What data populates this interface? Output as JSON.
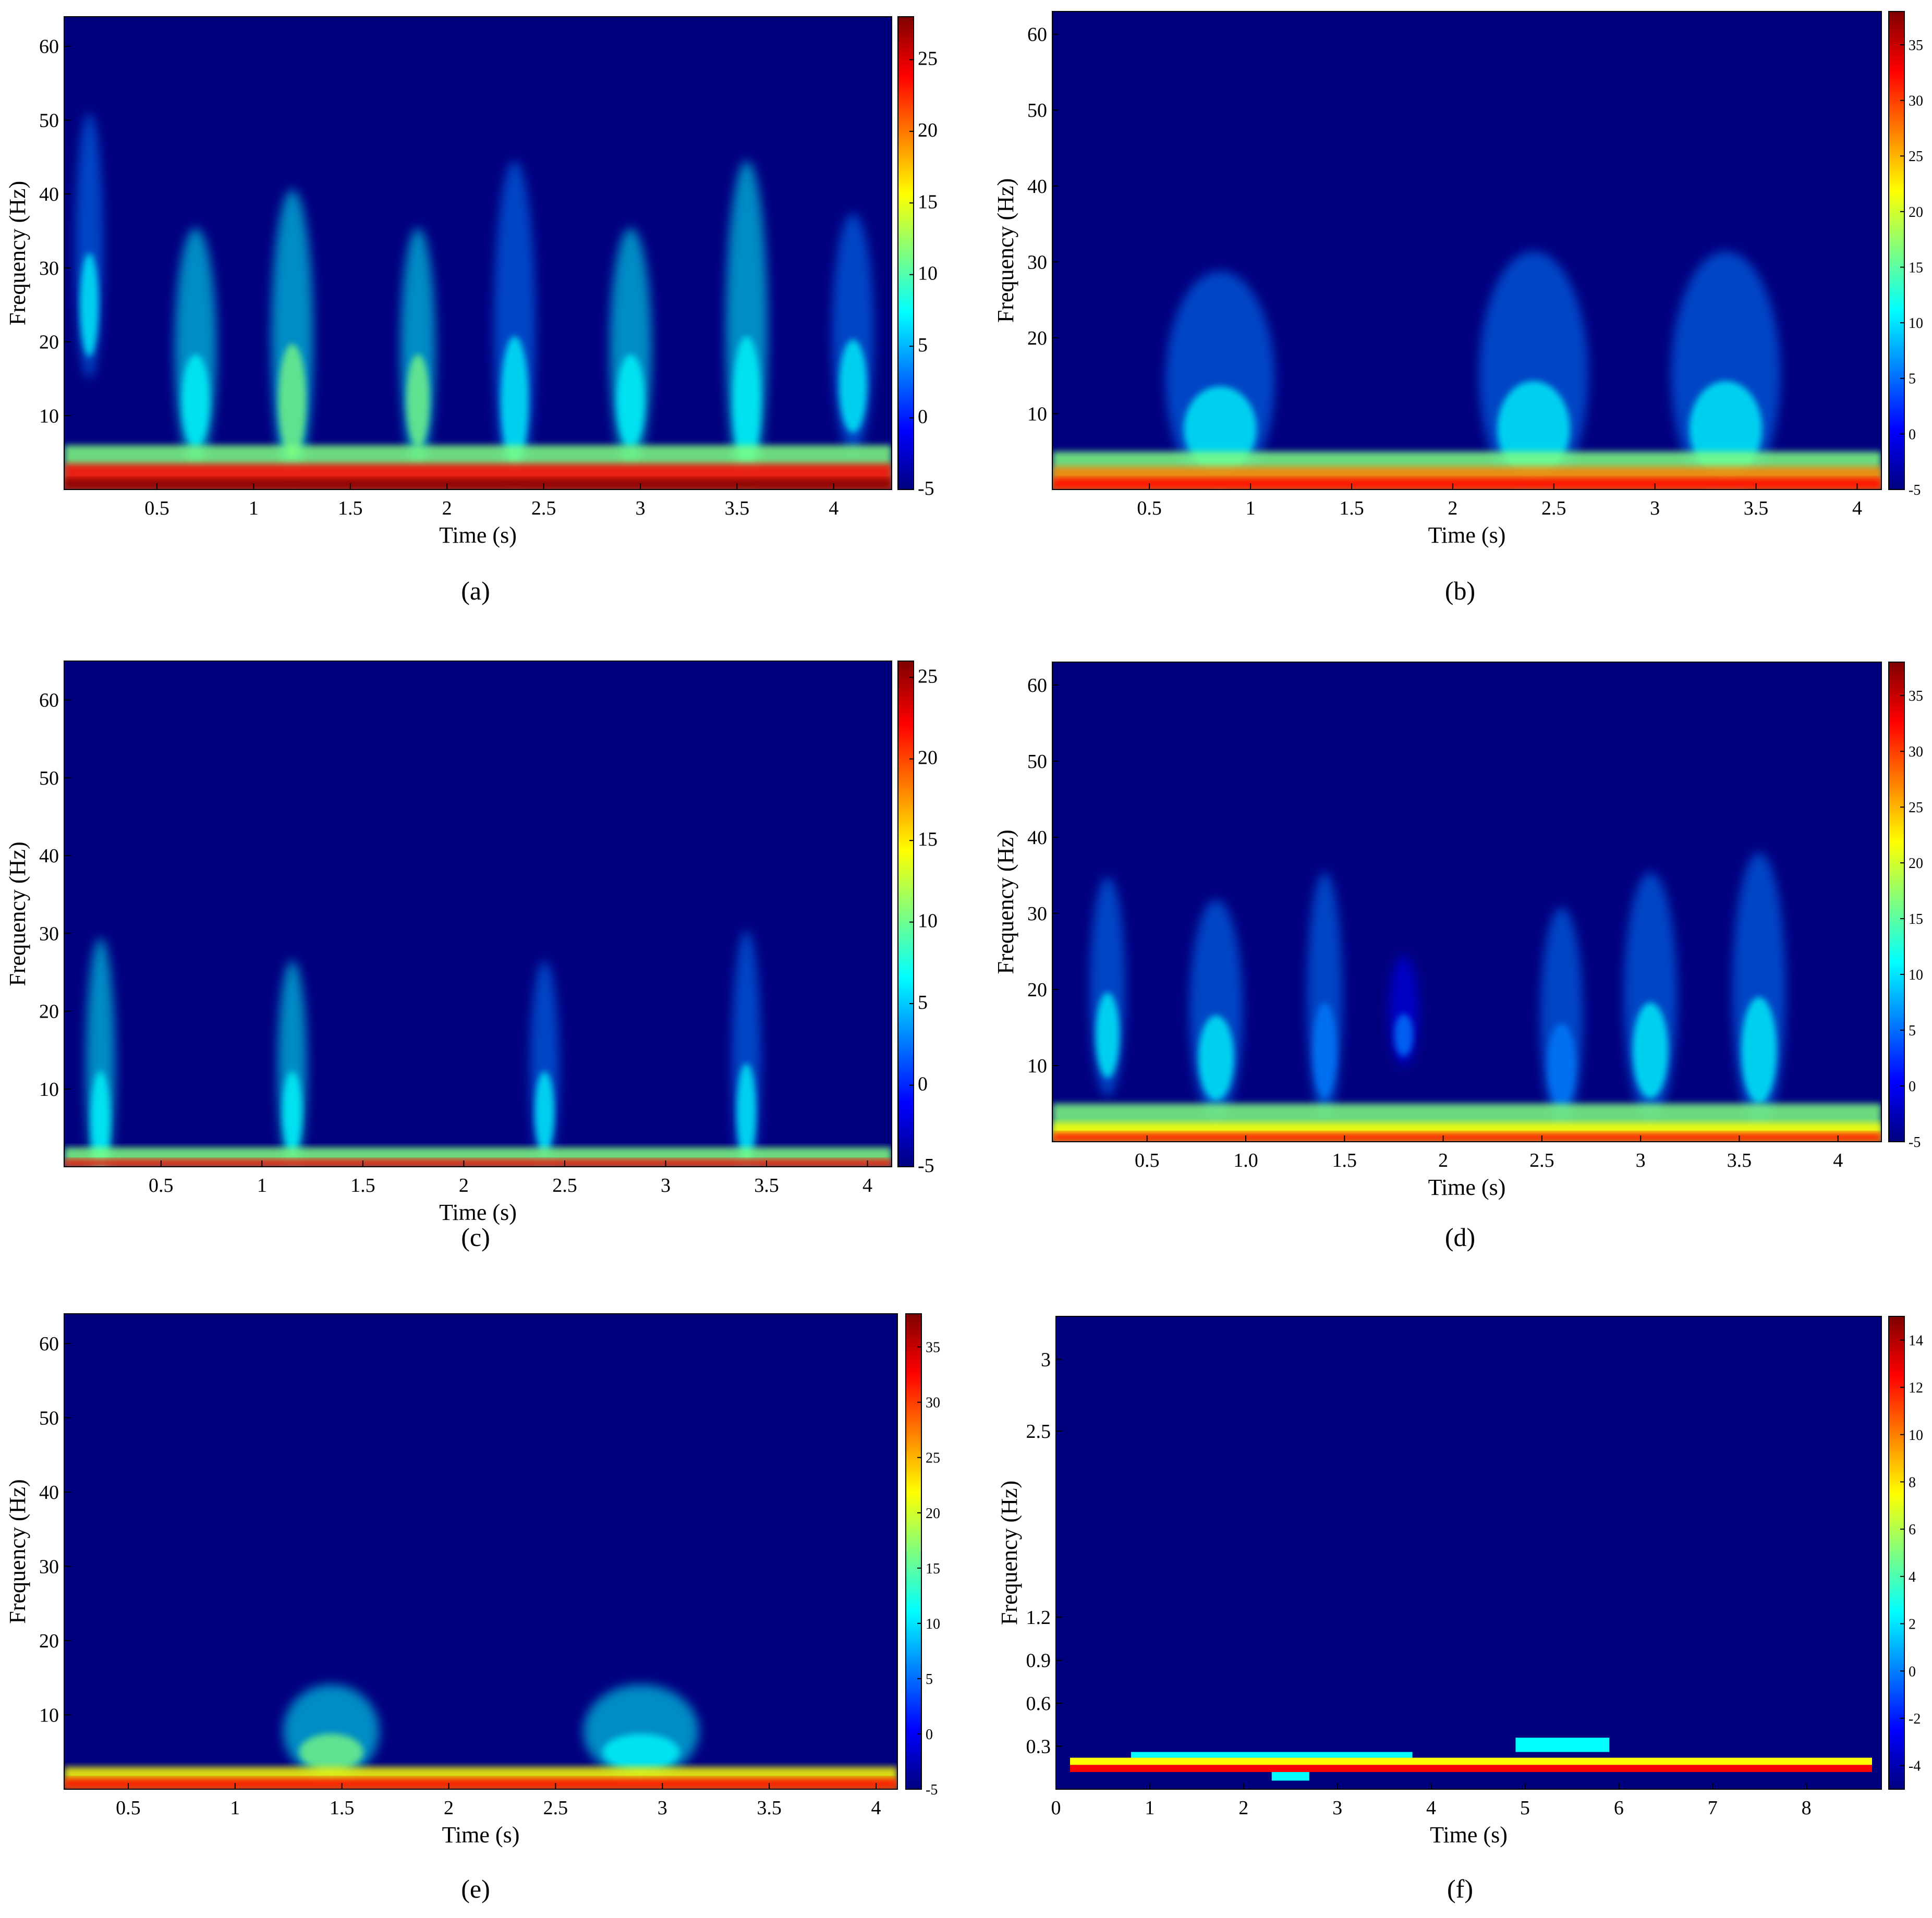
{
  "figure": {
    "panels_note": ""
  },
  "colormap": [
    "#00007f",
    "#0000ff",
    "#007fff",
    "#00ffff",
    "#7fff7f",
    "#ffff00",
    "#ff7f00",
    "#ff0000",
    "#7f0000"
  ],
  "chart_data": [
    {
      "id": "a",
      "type": "heatmap",
      "caption": "(a)",
      "xlabel": "Time (s)",
      "ylabel": "Frequency (Hz)",
      "xlim": [
        0.02,
        4.3
      ],
      "ylim": [
        0,
        64
      ],
      "xticks": [
        {
          "v": 0.5,
          "t": "0.5"
        },
        {
          "v": 1,
          "t": "1"
        },
        {
          "v": 1.5,
          "t": "1.5"
        },
        {
          "v": 2,
          "t": "2"
        },
        {
          "v": 2.5,
          "t": "2.5"
        },
        {
          "v": 3,
          "t": "3"
        },
        {
          "v": 3.5,
          "t": "3.5"
        },
        {
          "v": 4,
          "t": "4"
        }
      ],
      "yticks": [
        {
          "v": 10,
          "t": "10"
        },
        {
          "v": 20,
          "t": "20"
        },
        {
          "v": 30,
          "t": "30"
        },
        {
          "v": 40,
          "t": "40"
        },
        {
          "v": 50,
          "t": "50"
        },
        {
          "v": 60,
          "t": "60"
        }
      ],
      "clim": [
        -5,
        28
      ],
      "cticks": [
        {
          "v": -5,
          "t": "-5"
        },
        {
          "v": 0,
          "t": "0"
        },
        {
          "v": 5,
          "t": "5"
        },
        {
          "v": 10,
          "t": "10"
        },
        {
          "v": 15,
          "t": "15"
        },
        {
          "v": 20,
          "t": "20"
        },
        {
          "v": 25,
          "t": "25"
        }
      ],
      "base_band": [
        {
          "f": 1.5,
          "level": 26
        },
        {
          "f": 3.5,
          "level": 22
        },
        {
          "f": 6,
          "level": 12
        }
      ],
      "bursts": [
        {
          "t": 0.15,
          "f": 25,
          "spread": 0.08,
          "height": 20,
          "level": 6
        },
        {
          "t": 0.7,
          "f": 12,
          "spread": 0.12,
          "height": 18,
          "level": 9
        },
        {
          "t": 1.2,
          "f": 12,
          "spread": 0.12,
          "height": 22,
          "level": 11
        },
        {
          "t": 1.85,
          "f": 12,
          "spread": 0.1,
          "height": 18,
          "level": 10
        },
        {
          "t": 2.35,
          "f": 12,
          "spread": 0.12,
          "height": 25,
          "level": 8
        },
        {
          "t": 2.95,
          "f": 12,
          "spread": 0.12,
          "height": 18,
          "level": 9
        },
        {
          "t": 3.55,
          "f": 12,
          "spread": 0.12,
          "height": 25,
          "level": 9
        },
        {
          "t": 4.1,
          "f": 14,
          "spread": 0.12,
          "height": 18,
          "level": 8
        }
      ]
    },
    {
      "id": "b",
      "type": "heatmap",
      "caption": "(b)",
      "xlabel": "Time (s)",
      "ylabel": "Frequency (Hz)",
      "xlim": [
        0.02,
        4.12
      ],
      "ylim": [
        0,
        63
      ],
      "xticks": [
        {
          "v": 0.5,
          "t": "0.5"
        },
        {
          "v": 1,
          "t": "1"
        },
        {
          "v": 1.5,
          "t": "1.5"
        },
        {
          "v": 2,
          "t": "2"
        },
        {
          "v": 2.5,
          "t": "2.5"
        },
        {
          "v": 3,
          "t": "3"
        },
        {
          "v": 3.5,
          "t": "3.5"
        },
        {
          "v": 4,
          "t": "4"
        }
      ],
      "yticks": [
        {
          "v": 10,
          "t": "10"
        },
        {
          "v": 20,
          "t": "20"
        },
        {
          "v": 30,
          "t": "30"
        },
        {
          "v": 40,
          "t": "40"
        },
        {
          "v": 50,
          "t": "50"
        },
        {
          "v": 60,
          "t": "60"
        }
      ],
      "clim": [
        -5,
        38
      ],
      "cticks": [
        {
          "v": -5,
          "t": "-5"
        },
        {
          "v": 0,
          "t": "0"
        },
        {
          "v": 5,
          "t": "5"
        },
        {
          "v": 10,
          "t": "10"
        },
        {
          "v": 15,
          "t": "15"
        },
        {
          "v": 20,
          "t": "20"
        },
        {
          "v": 25,
          "t": "25"
        },
        {
          "v": 30,
          "t": "30"
        },
        {
          "v": 35,
          "t": "35"
        }
      ],
      "base_band": [
        {
          "f": 1.5,
          "level": 34
        },
        {
          "f": 3,
          "level": 26
        },
        {
          "f": 5,
          "level": 14
        }
      ],
      "bursts": [
        {
          "t": 0.85,
          "f": 8,
          "spread": 0.3,
          "height": 16,
          "level": 10
        },
        {
          "t": 2.4,
          "f": 8,
          "spread": 0.3,
          "height": 18,
          "level": 10
        },
        {
          "t": 3.35,
          "f": 8,
          "spread": 0.3,
          "height": 18,
          "level": 9
        }
      ]
    },
    {
      "id": "c",
      "type": "heatmap",
      "caption": "(c)",
      "xlabel": "Time (s)",
      "ylabel": "Frequency (Hz)",
      "xlim": [
        0.02,
        4.12
      ],
      "ylim": [
        0,
        65
      ],
      "xticks": [
        {
          "v": 0.5,
          "t": "0.5"
        },
        {
          "v": 1,
          "t": "1"
        },
        {
          "v": 1.5,
          "t": "1.5"
        },
        {
          "v": 2,
          "t": "2"
        },
        {
          "v": 2.5,
          "t": "2.5"
        },
        {
          "v": 3,
          "t": "3"
        },
        {
          "v": 3.5,
          "t": "3.5"
        },
        {
          "v": 4,
          "t": "4"
        }
      ],
      "yticks": [
        {
          "v": 10,
          "t": "10"
        },
        {
          "v": 20,
          "t": "20"
        },
        {
          "v": 30,
          "t": "30"
        },
        {
          "v": 40,
          "t": "40"
        },
        {
          "v": 50,
          "t": "50"
        },
        {
          "v": 60,
          "t": "60"
        }
      ],
      "clim": [
        -5,
        26
      ],
      "cticks": [
        {
          "v": -5,
          "t": "-5"
        },
        {
          "v": 0,
          "t": "0"
        },
        {
          "v": 5,
          "t": "5"
        },
        {
          "v": 10,
          "t": "10"
        },
        {
          "v": 15,
          "t": "15"
        },
        {
          "v": 20,
          "t": "20"
        },
        {
          "v": 25,
          "t": "25"
        }
      ],
      "base_band": [
        {
          "f": 1,
          "level": 22
        },
        {
          "f": 2.5,
          "level": 10
        }
      ],
      "bursts": [
        {
          "t": 0.2,
          "f": 6,
          "spread": 0.08,
          "height": 18,
          "level": 8
        },
        {
          "t": 1.15,
          "f": 7,
          "spread": 0.08,
          "height": 15,
          "level": 8
        },
        {
          "t": 2.4,
          "f": 7,
          "spread": 0.08,
          "height": 15,
          "level": 7
        },
        {
          "t": 3.4,
          "f": 7,
          "spread": 0.08,
          "height": 18,
          "level": 7
        }
      ]
    },
    {
      "id": "d",
      "type": "heatmap",
      "caption": "(d)",
      "xlabel": "Time (s)",
      "ylabel": "Frequency (Hz)",
      "xlim": [
        0.02,
        4.22
      ],
      "ylim": [
        0,
        63
      ],
      "xticks": [
        {
          "v": 0.5,
          "t": "0.5"
        },
        {
          "v": 1,
          "t": "1.0"
        },
        {
          "v": 1.5,
          "t": "1.5"
        },
        {
          "v": 2,
          "t": "2"
        },
        {
          "v": 2.5,
          "t": "2.5"
        },
        {
          "v": 3,
          "t": "3"
        },
        {
          "v": 3.5,
          "t": "3.5"
        },
        {
          "v": 4,
          "t": "4"
        }
      ],
      "yticks": [
        {
          "v": 10,
          "t": "10"
        },
        {
          "v": 20,
          "t": "20"
        },
        {
          "v": 30,
          "t": "30"
        },
        {
          "v": 40,
          "t": "40"
        },
        {
          "v": 50,
          "t": "50"
        },
        {
          "v": 60,
          "t": "60"
        }
      ],
      "clim": [
        -5,
        38
      ],
      "cticks": [
        {
          "v": -5,
          "t": "-5"
        },
        {
          "v": 0,
          "t": "0"
        },
        {
          "v": 5,
          "t": "5"
        },
        {
          "v": 10,
          "t": "10"
        },
        {
          "v": 15,
          "t": "15"
        },
        {
          "v": 20,
          "t": "20"
        },
        {
          "v": 25,
          "t": "25"
        },
        {
          "v": 30,
          "t": "30"
        },
        {
          "v": 35,
          "t": "35"
        }
      ],
      "base_band": [
        {
          "f": 1.2,
          "level": 34
        },
        {
          "f": 2.5,
          "level": 24
        },
        {
          "f": 5,
          "level": 14
        }
      ],
      "bursts": [
        {
          "t": 0.3,
          "f": 14,
          "spread": 0.1,
          "height": 16,
          "level": 10
        },
        {
          "t": 0.85,
          "f": 11,
          "spread": 0.15,
          "height": 16,
          "level": 10
        },
        {
          "t": 1.4,
          "f": 12,
          "spread": 0.1,
          "height": 18,
          "level": 8
        },
        {
          "t": 1.8,
          "f": 14,
          "spread": 0.08,
          "height": 8,
          "level": 6
        },
        {
          "t": 2.6,
          "f": 10,
          "spread": 0.12,
          "height": 16,
          "level": 7
        },
        {
          "t": 3.05,
          "f": 12,
          "spread": 0.15,
          "height": 18,
          "level": 9
        },
        {
          "t": 3.6,
          "f": 12,
          "spread": 0.15,
          "height": 20,
          "level": 9
        }
      ]
    },
    {
      "id": "e",
      "type": "heatmap",
      "caption": "(e)",
      "xlabel": "Time (s)",
      "ylabel": "Frequency (Hz)",
      "xlim": [
        0.2,
        4.1
      ],
      "ylim": [
        0,
        64
      ],
      "xticks": [
        {
          "v": 0.5,
          "t": "0.5"
        },
        {
          "v": 1,
          "t": "1"
        },
        {
          "v": 1.5,
          "t": "1.5"
        },
        {
          "v": 2,
          "t": "2"
        },
        {
          "v": 2.5,
          "t": "2.5"
        },
        {
          "v": 3,
          "t": "3"
        },
        {
          "v": 3.5,
          "t": "3.5"
        },
        {
          "v": 4,
          "t": "4"
        }
      ],
      "yticks": [
        {
          "v": 10,
          "t": "10"
        },
        {
          "v": 20,
          "t": "20"
        },
        {
          "v": 30,
          "t": "30"
        },
        {
          "v": 40,
          "t": "40"
        },
        {
          "v": 50,
          "t": "50"
        },
        {
          "v": 60,
          "t": "60"
        }
      ],
      "clim": [
        -5,
        38
      ],
      "cticks": [
        {
          "v": -5,
          "t": "-5"
        },
        {
          "v": 0,
          "t": "0"
        },
        {
          "v": 5,
          "t": "5"
        },
        {
          "v": 10,
          "t": "10"
        },
        {
          "v": 15,
          "t": "15"
        },
        {
          "v": 20,
          "t": "20"
        },
        {
          "v": 25,
          "t": "25"
        },
        {
          "v": 30,
          "t": "30"
        },
        {
          "v": 35,
          "t": "35"
        }
      ],
      "base_band": [
        {
          "f": 1.5,
          "level": 30
        },
        {
          "f": 3,
          "level": 20
        }
      ],
      "bursts": [
        {
          "t": 1.45,
          "f": 5,
          "spread": 0.25,
          "height": 7,
          "level": 14
        },
        {
          "t": 2.9,
          "f": 5,
          "spread": 0.3,
          "height": 7,
          "level": 13
        }
      ]
    },
    {
      "id": "f",
      "type": "heatmap",
      "caption": "(f)",
      "xlabel": "Time (s)",
      "ylabel": "Frequency (Hz)",
      "xlim": [
        0,
        8.8
      ],
      "ylim": [
        0,
        3.3
      ],
      "xticks": [
        {
          "v": 0,
          "t": "0"
        },
        {
          "v": 1,
          "t": "1"
        },
        {
          "v": 2,
          "t": "2"
        },
        {
          "v": 3,
          "t": "3"
        },
        {
          "v": 4,
          "t": "4"
        },
        {
          "v": 5,
          "t": "5"
        },
        {
          "v": 6,
          "t": "6"
        },
        {
          "v": 7,
          "t": "7"
        },
        {
          "v": 8,
          "t": "8"
        }
      ],
      "yticks": [
        {
          "v": 0.3,
          "t": "0.3"
        },
        {
          "v": 0.6,
          "t": "0.6"
        },
        {
          "v": 0.9,
          "t": "0.9"
        },
        {
          "v": 1.2,
          "t": "1.2"
        },
        {
          "v": 2.5,
          "t": "2.5"
        },
        {
          "v": 3,
          "t": "3"
        }
      ],
      "clim": [
        -5,
        15
      ],
      "cticks": [
        {
          "v": -4,
          "t": "-4"
        },
        {
          "v": -2,
          "t": "-2"
        },
        {
          "v": 0,
          "t": "0"
        },
        {
          "v": 2,
          "t": "2"
        },
        {
          "v": 4,
          "t": "4"
        },
        {
          "v": 6,
          "t": "6"
        },
        {
          "v": 8,
          "t": "8"
        },
        {
          "v": 10,
          "t": "10"
        },
        {
          "v": 12,
          "t": "12"
        },
        {
          "v": 14,
          "t": "14"
        }
      ],
      "base_band": [],
      "bursts": []
    }
  ]
}
